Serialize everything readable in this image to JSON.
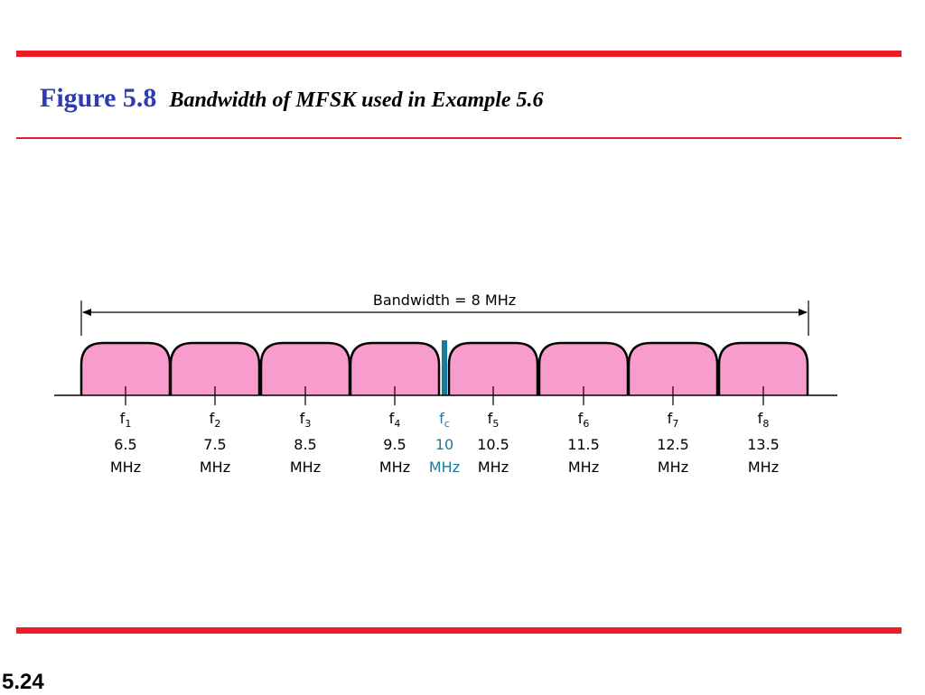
{
  "header": {
    "figure_label": "Figure 5.8",
    "caption": "Bandwidth of MFSK used in Example 5.6"
  },
  "footer": {
    "slide_number": "5.24"
  },
  "colors": {
    "rule": "#ee1c25",
    "title": "#2e3cb5",
    "band_fill": "#f79ccd",
    "carrier": "#1a7a9a",
    "line": "#000000"
  },
  "diagram": {
    "bandwidth_label": "Bandwidth = 8 MHz",
    "unit": "MHz",
    "bands": [
      {
        "sym": "f",
        "sub": "1",
        "value": "6.5"
      },
      {
        "sym": "f",
        "sub": "2",
        "value": "7.5"
      },
      {
        "sym": "f",
        "sub": "3",
        "value": "8.5"
      },
      {
        "sym": "f",
        "sub": "4",
        "value": "9.5"
      },
      {
        "sym": "f",
        "sub": "5",
        "value": "10.5"
      },
      {
        "sym": "f",
        "sub": "6",
        "value": "11.5"
      },
      {
        "sym": "f",
        "sub": "7",
        "value": "12.5"
      },
      {
        "sym": "f",
        "sub": "8",
        "value": "13.5"
      }
    ],
    "carrier": {
      "sym": "f",
      "sub": "c",
      "value": "10"
    }
  }
}
